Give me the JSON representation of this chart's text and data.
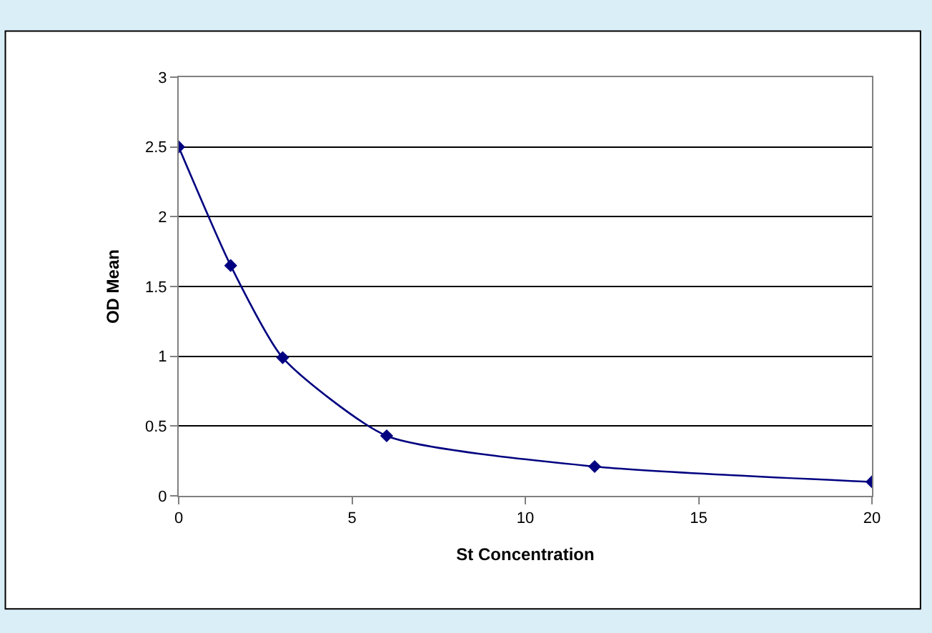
{
  "chart_data": {
    "type": "line",
    "xlabel": "St Concentration",
    "ylabel": "OD Mean",
    "x": [
      0,
      1.5,
      3,
      6,
      12,
      20
    ],
    "series": [
      {
        "color": "#000080",
        "values": [
          2.5,
          1.65,
          0.99,
          0.43,
          0.21,
          0.1
        ]
      }
    ],
    "xlim": [
      0,
      20
    ],
    "xticks": [
      0,
      5,
      10,
      15,
      20
    ],
    "ylim": [
      0,
      3
    ],
    "yticks": [
      0,
      0.5,
      1,
      1.5,
      2,
      2.5,
      3
    ],
    "grid": "y",
    "marker": "diamond",
    "line_style": "solid"
  }
}
